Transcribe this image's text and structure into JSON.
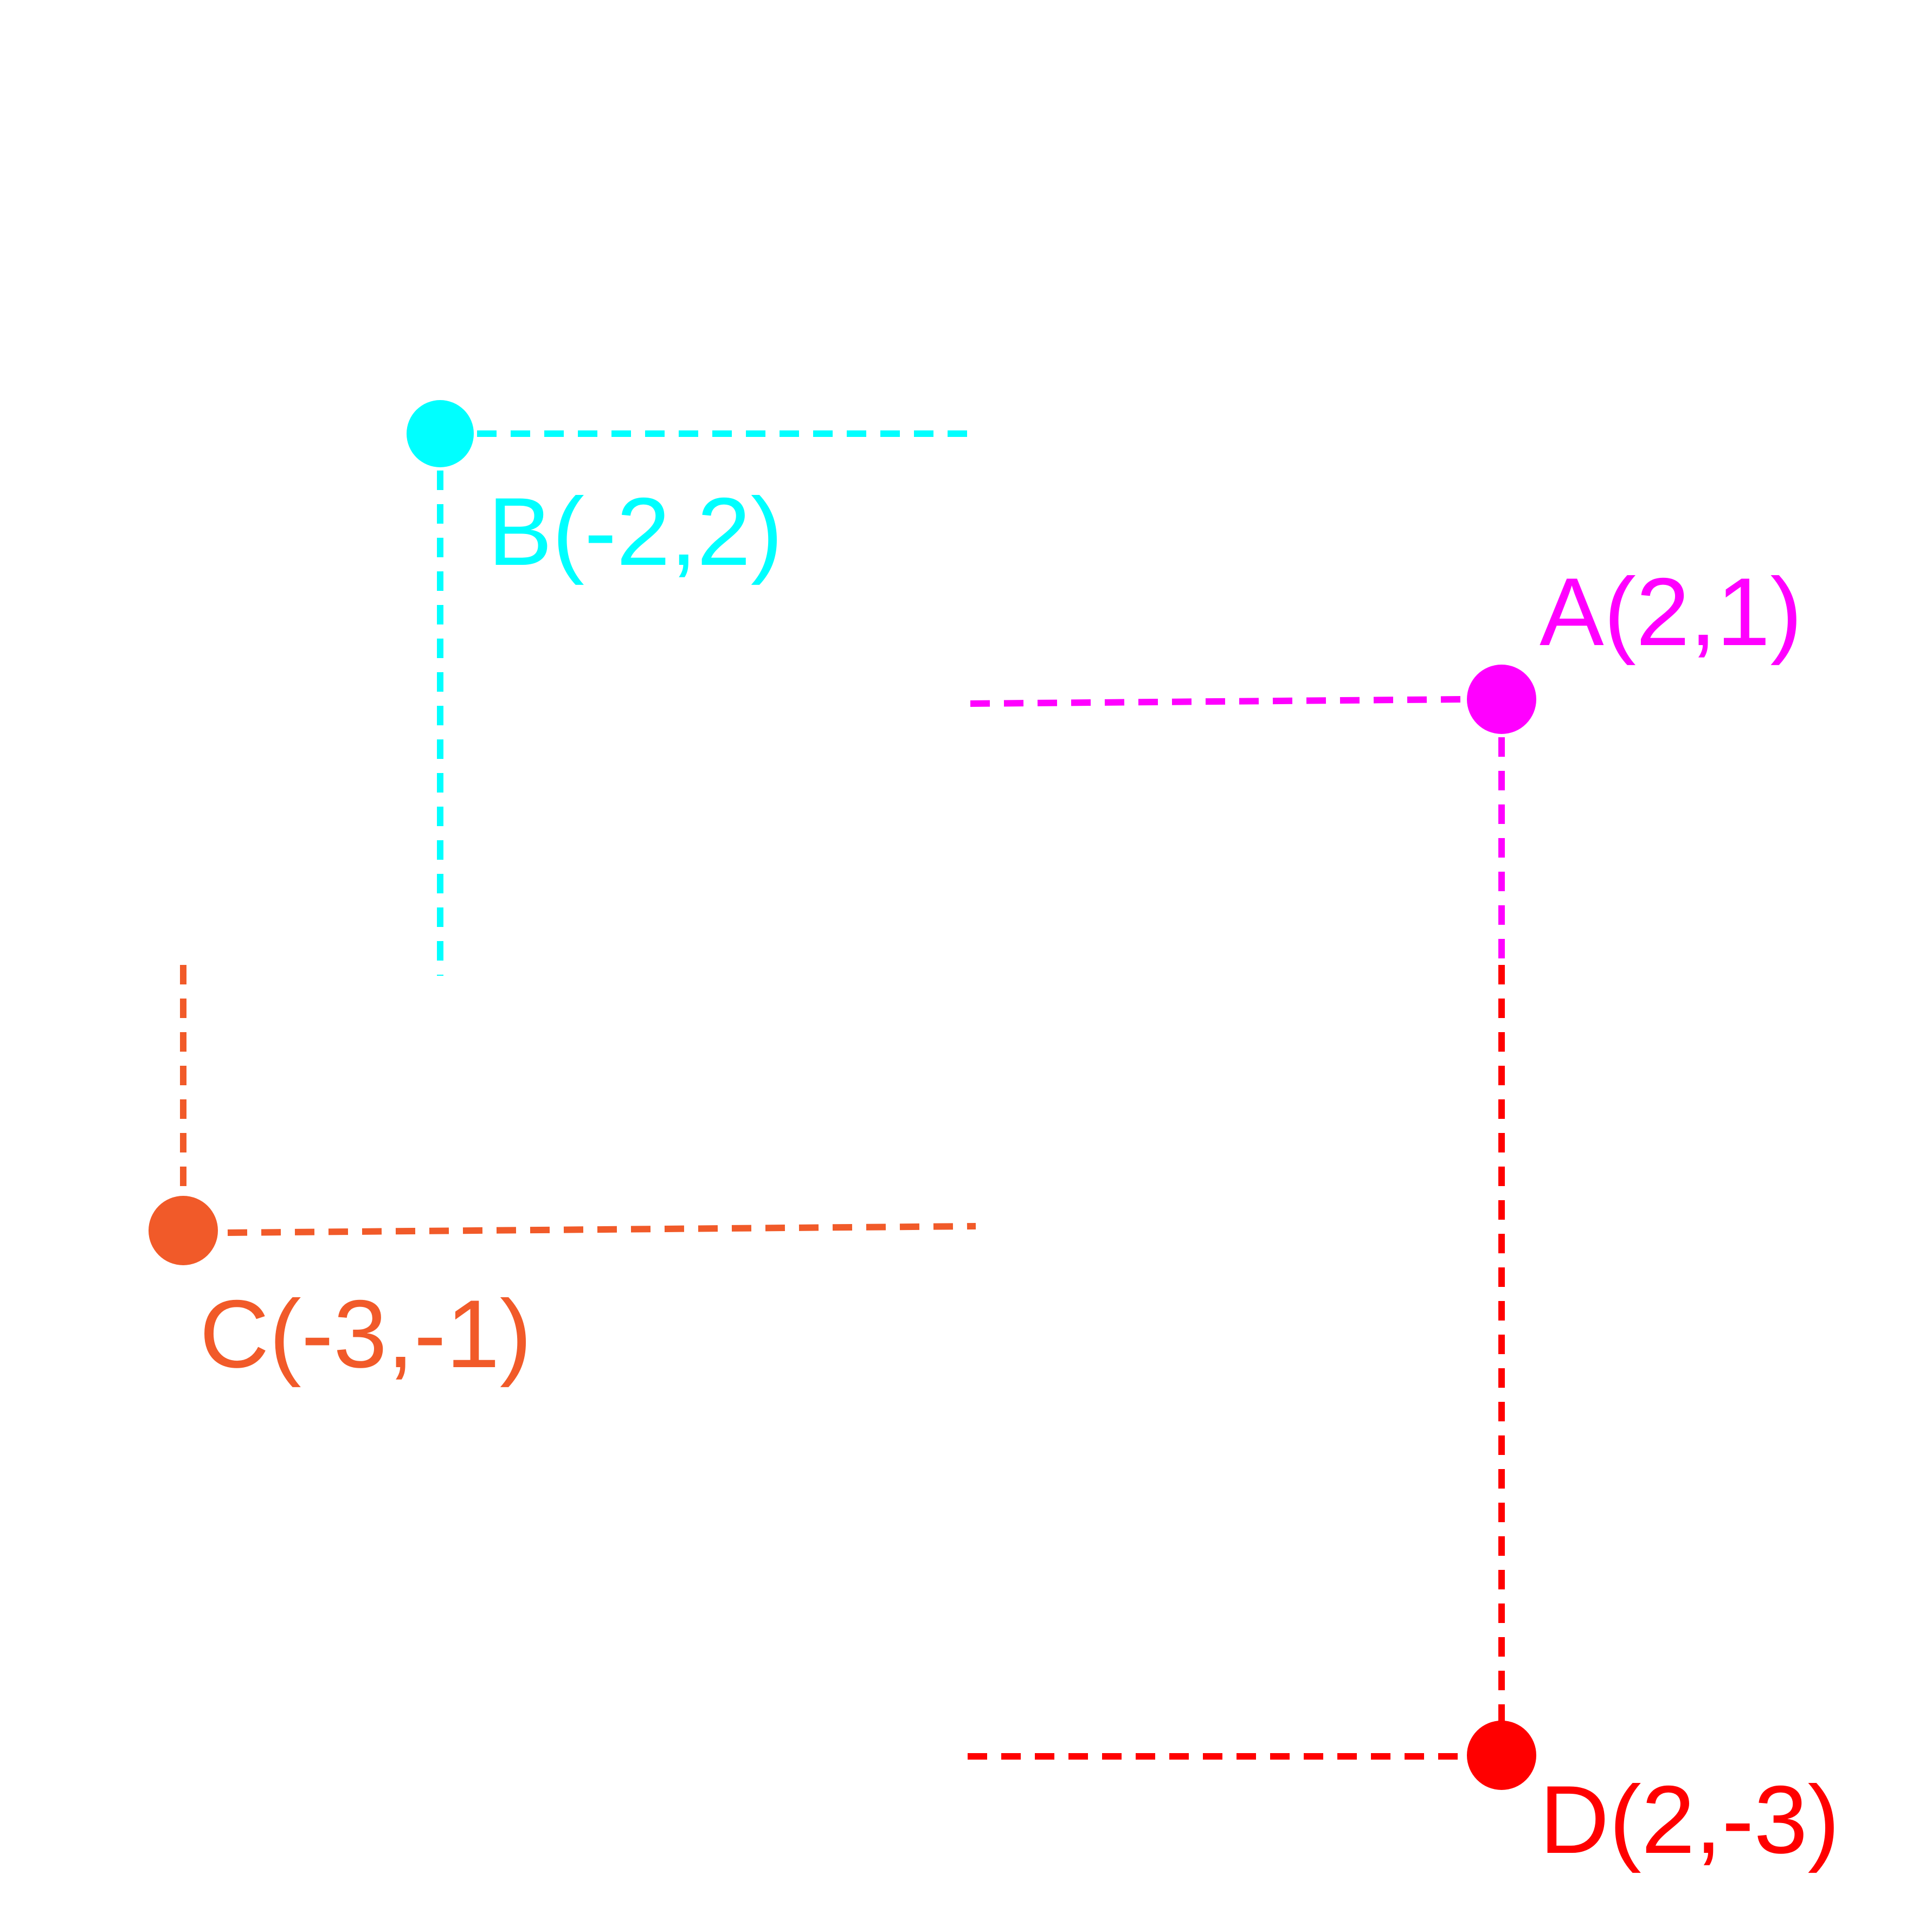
{
  "points": [
    {
      "id": "A",
      "label": "A(2,1)",
      "x": 2,
      "y": 1,
      "color": "#ff00ff"
    },
    {
      "id": "B",
      "label": "B(-2,2)",
      "x": -2,
      "y": 2,
      "color": "#00ffff"
    },
    {
      "id": "C",
      "label": "C(-3,-1)",
      "x": -3,
      "y": -1,
      "color": "#f15a29"
    },
    {
      "id": "D",
      "label": "D(2,-3)",
      "x": 2,
      "y": -3,
      "color": "#ff0000"
    }
  ]
}
